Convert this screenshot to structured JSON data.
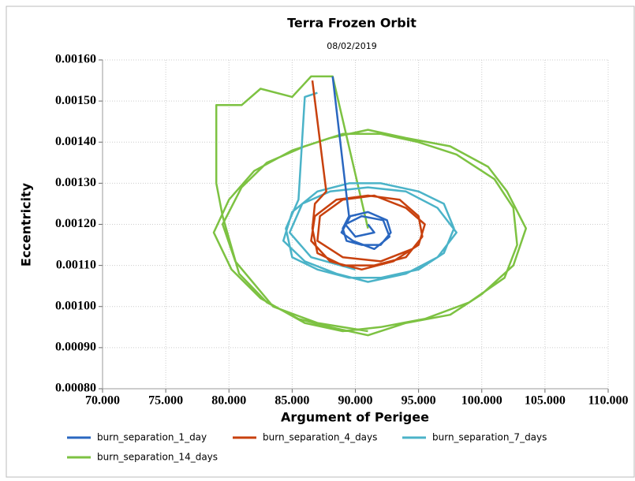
{
  "chart_data": {
    "type": "line",
    "title": "Terra Frozen Orbit",
    "subtitle": "08/02/2019",
    "x_label": "Argument of Perigee",
    "y_label": "Eccentricity",
    "xlim": [
      70,
      110
    ],
    "ylim": [
      0.0008,
      0.0016
    ],
    "grid": true,
    "legend": "bottom",
    "xticks": [
      {
        "value": 70,
        "label": "70.000"
      },
      {
        "value": 75,
        "label": "75.000"
      },
      {
        "value": 80,
        "label": "80.000"
      },
      {
        "value": 85,
        "label": "85.000"
      },
      {
        "value": 90,
        "label": "90.000"
      },
      {
        "value": 95,
        "label": "95.000"
      },
      {
        "value": 100,
        "label": "100.000"
      },
      {
        "value": 105,
        "label": "105.000"
      },
      {
        "value": 110,
        "label": "110.000"
      }
    ],
    "yticks": [
      {
        "value": 0.0008,
        "label": "0.00080"
      },
      {
        "value": 0.0009,
        "label": "0.00090"
      },
      {
        "value": 0.001,
        "label": "0.00100"
      },
      {
        "value": 0.0011,
        "label": "0.00110"
      },
      {
        "value": 0.0012,
        "label": "0.00120"
      },
      {
        "value": 0.0013,
        "label": "0.00130"
      },
      {
        "value": 0.0014,
        "label": "0.00140"
      },
      {
        "value": 0.0015,
        "label": "0.00150"
      },
      {
        "value": 0.0016,
        "label": "0.00160"
      }
    ],
    "series": [
      {
        "name": "burn_separation_14_days",
        "color": "#7dc242",
        "x": [
          91,
          88.2,
          86.5,
          85,
          82.5,
          81,
          79,
          79,
          79.5,
          80.8,
          83,
          85.5,
          88,
          91,
          94,
          97.5,
          100,
          102.5,
          103.5,
          102,
          100.5,
          97.5,
          94,
          91,
          88,
          85,
          82,
          80,
          78.8,
          80.2,
          82.5,
          86,
          89,
          92,
          95.5,
          99,
          101.8,
          102.8,
          102.5,
          101,
          98,
          95,
          92,
          89,
          86,
          83,
          81,
          79.5,
          80.5,
          83.5,
          87,
          91
        ],
        "values": [
          0.00119,
          0.00156,
          0.00156,
          0.00151,
          0.00153,
          0.00149,
          0.00149,
          0.0013,
          0.00122,
          0.00108,
          0.00101,
          0.00097,
          0.00095,
          0.00093,
          0.00096,
          0.00098,
          0.00103,
          0.0011,
          0.00119,
          0.00128,
          0.00134,
          0.00139,
          0.00141,
          0.00143,
          0.00141,
          0.00138,
          0.00133,
          0.00126,
          0.00118,
          0.00109,
          0.00102,
          0.00096,
          0.00094,
          0.00095,
          0.00097,
          0.00101,
          0.00107,
          0.00115,
          0.00124,
          0.00131,
          0.00137,
          0.0014,
          0.00142,
          0.00142,
          0.00139,
          0.00135,
          0.00129,
          0.0012,
          0.00111,
          0.001,
          0.00096,
          0.00094
        ]
      },
      {
        "name": "burn_separation_7_days",
        "color": "#4bb3c8",
        "x": [
          87,
          86,
          85.5,
          84.5,
          85,
          87,
          89.5,
          92,
          95,
          97,
          97.8,
          97,
          95,
          92,
          89.5,
          87,
          85,
          84.3,
          86,
          88.5,
          91,
          94,
          96.5,
          98,
          96.5,
          94,
          91,
          88,
          85.8,
          84.8,
          86.5,
          90
        ],
        "values": [
          0.00152,
          0.00151,
          0.00126,
          0.00119,
          0.00112,
          0.00109,
          0.00107,
          0.00107,
          0.00109,
          0.00113,
          0.00119,
          0.00125,
          0.00128,
          0.0013,
          0.0013,
          0.00128,
          0.00123,
          0.00116,
          0.00111,
          0.00108,
          0.00106,
          0.00108,
          0.00112,
          0.00118,
          0.00124,
          0.00128,
          0.00129,
          0.00128,
          0.00125,
          0.00118,
          0.00112,
          0.00109
        ]
      },
      {
        "name": "burn_separation_4_days",
        "color": "#c8410e",
        "x": [
          86.6,
          87.7,
          86.8,
          86.6,
          87,
          89,
          91.5,
          94,
          95.3,
          95,
          93.5,
          91,
          88.5,
          86.8,
          86.5,
          88,
          90.5,
          93,
          95,
          95.5,
          94,
          91.5,
          89,
          87.2,
          87,
          89,
          92,
          94.5
        ],
        "values": [
          0.00155,
          0.00128,
          0.00125,
          0.00119,
          0.00113,
          0.0011,
          0.0011,
          0.00112,
          0.00117,
          0.00122,
          0.00126,
          0.00127,
          0.00126,
          0.00122,
          0.00116,
          0.00111,
          0.00109,
          0.00111,
          0.00115,
          0.0012,
          0.00124,
          0.00127,
          0.00126,
          0.00122,
          0.00116,
          0.00112,
          0.00111,
          0.00114
        ]
      },
      {
        "name": "burn_separation_1_day",
        "color": "#2a67c0",
        "x": [
          88.2,
          89.3,
          89.5,
          89,
          89.3,
          90.5,
          92,
          92.8,
          92.5,
          91,
          89.6,
          88.9,
          89.8,
          91.5,
          92.7,
          92.2,
          90.5,
          89.2,
          90,
          91.5,
          91
        ],
        "values": [
          0.00156,
          0.00127,
          0.00122,
          0.00119,
          0.00116,
          0.00115,
          0.00115,
          0.00118,
          0.00121,
          0.00123,
          0.00122,
          0.00118,
          0.00116,
          0.00114,
          0.00117,
          0.00121,
          0.00122,
          0.0012,
          0.00117,
          0.00118,
          0.0012
        ]
      }
    ]
  }
}
